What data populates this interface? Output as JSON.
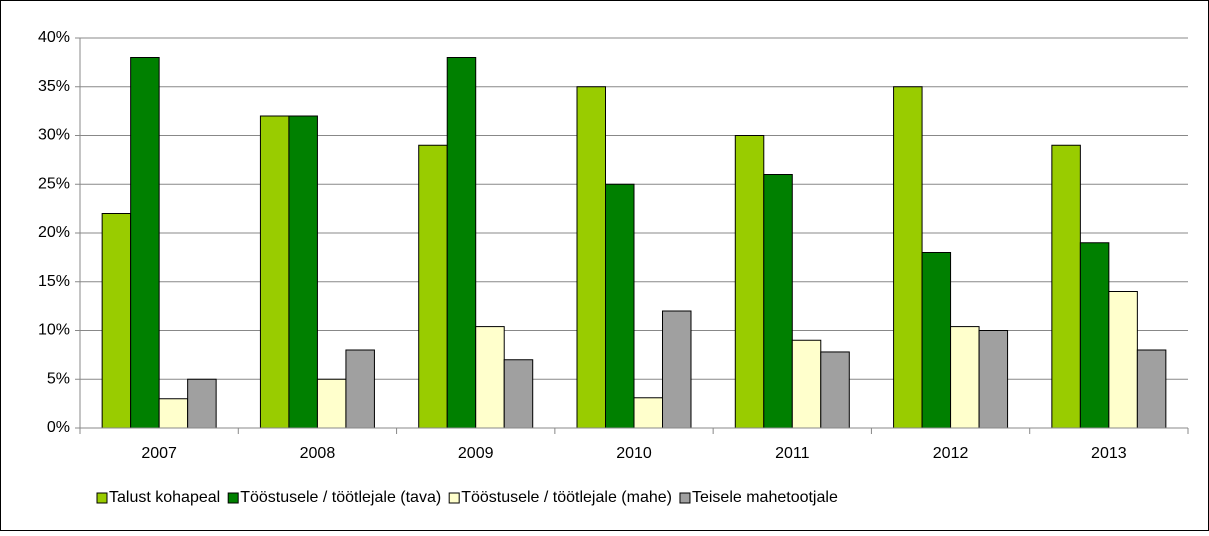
{
  "chart_data": {
    "type": "bar",
    "categories": [
      "2007",
      "2008",
      "2009",
      "2010",
      "2011",
      "2012",
      "2013"
    ],
    "series": [
      {
        "name": "Talust kohapeal",
        "color": "#99cc00",
        "values": [
          22,
          32,
          29,
          35,
          30,
          35,
          29
        ]
      },
      {
        "name": "Tööstusele / töötlejale (tava)",
        "color": "#008000",
        "values": [
          38,
          32,
          38,
          25,
          26,
          18,
          19
        ]
      },
      {
        "name": "Tööstusele / töötlejale (mahe)",
        "color": "#ffffcc",
        "values": [
          3,
          5,
          10.4,
          3.1,
          9,
          10.4,
          14
        ]
      },
      {
        "name": "Teisele mahetootjale",
        "color": "#a0a0a0",
        "values": [
          5,
          8,
          7,
          12,
          7.8,
          10,
          8
        ]
      }
    ],
    "ylim": [
      0,
      40
    ],
    "yticks": [
      {
        "value": 0,
        "label": "0%"
      },
      {
        "value": 5,
        "label": "5%"
      },
      {
        "value": 10,
        "label": "10%"
      },
      {
        "value": 15,
        "label": "15%"
      },
      {
        "value": 20,
        "label": "20%"
      },
      {
        "value": 25,
        "label": "25%"
      },
      {
        "value": 30,
        "label": "30%"
      },
      {
        "value": 35,
        "label": "35%"
      },
      {
        "value": 40,
        "label": "40%"
      }
    ],
    "grid": true,
    "legend": "bottom"
  }
}
